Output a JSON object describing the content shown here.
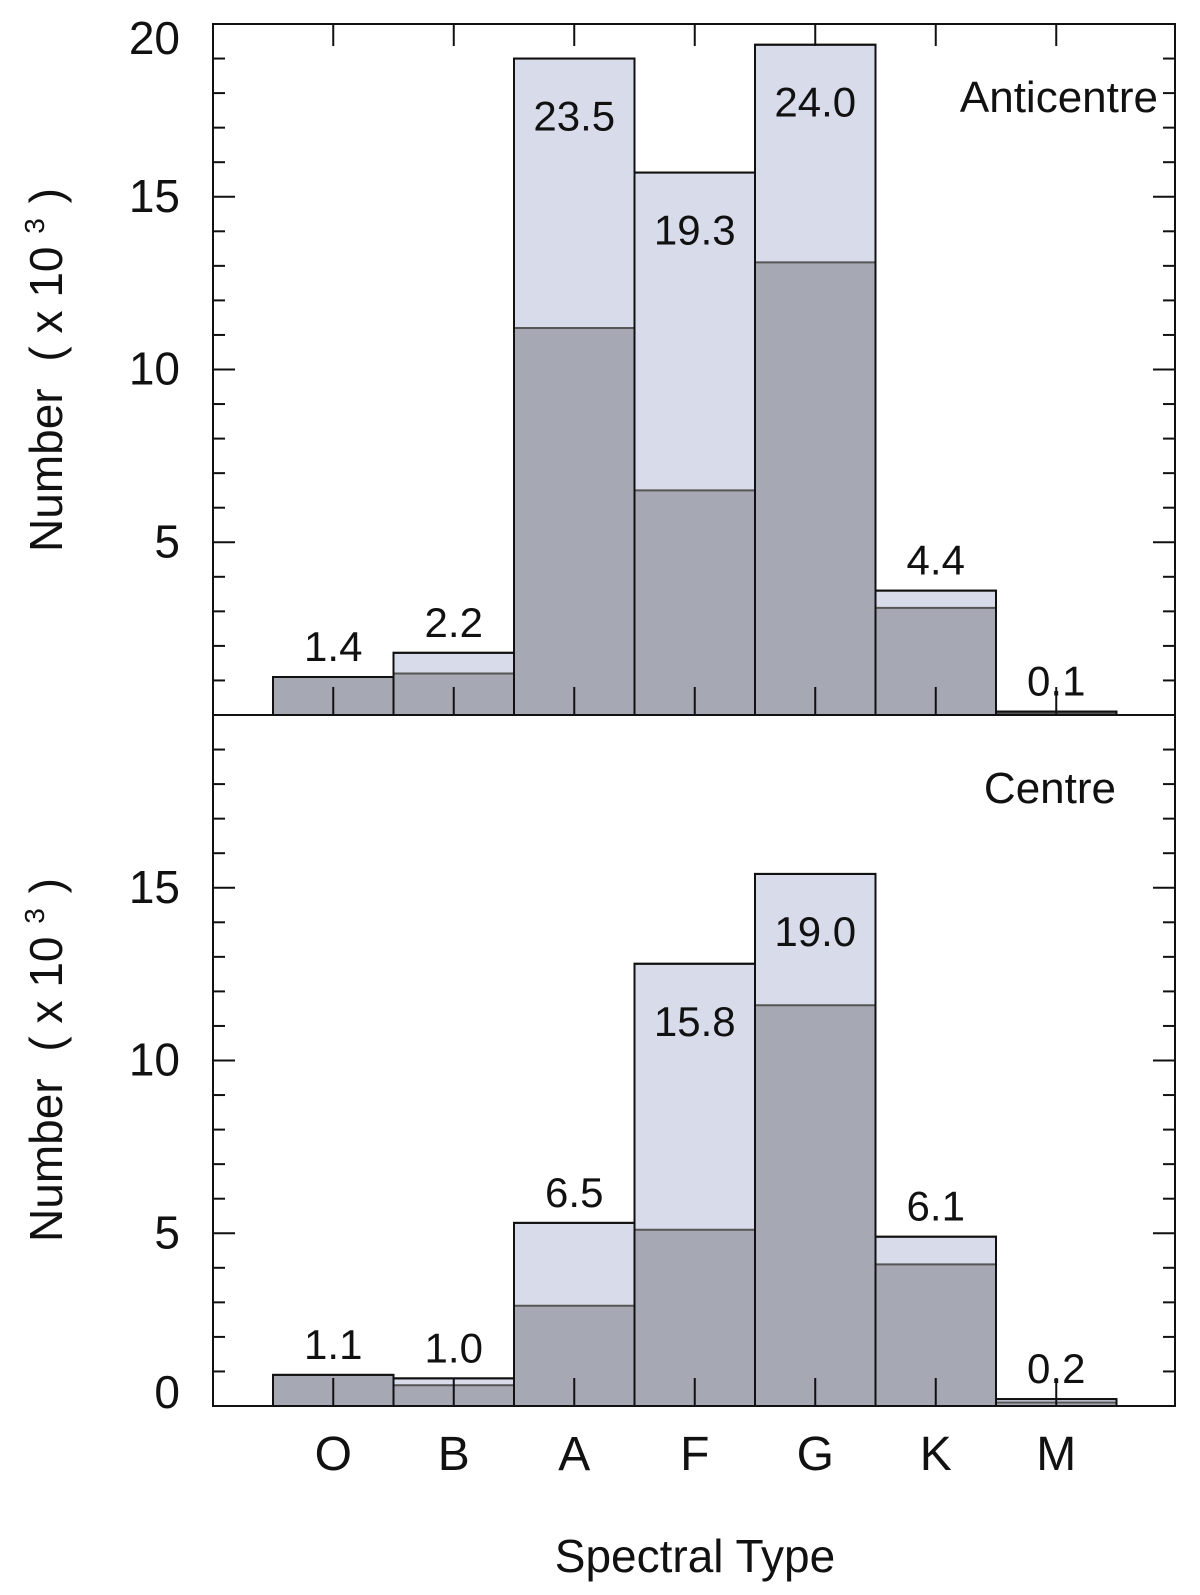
{
  "chart_data": [
    {
      "type": "bar",
      "panel": "top",
      "title": "Anticentre",
      "ylabel": "Number",
      "ylabel_unit": "( x 10",
      "ylabel_exp": "3",
      "ylabel_close": ")",
      "ylim": [
        0,
        20
      ],
      "yticks": [
        5,
        10,
        15,
        20
      ],
      "categories": [
        "O",
        "B",
        "A",
        "F",
        "G",
        "K",
        "M"
      ],
      "series": [
        {
          "role": "total",
          "values": [
            1.1,
            1.8,
            19.0,
            15.7,
            19.4,
            3.6,
            0.1
          ]
        },
        {
          "role": "subset",
          "values": [
            1.1,
            1.2,
            11.2,
            6.5,
            13.1,
            3.1,
            0.05
          ]
        }
      ],
      "bar_labels": [
        "1.4",
        "2.2",
        "23.5",
        "19.3",
        "24.0",
        "4.4",
        "0.1"
      ],
      "label_inside": [
        false,
        false,
        true,
        true,
        true,
        false,
        false
      ]
    },
    {
      "type": "bar",
      "panel": "bottom",
      "title": "Centre",
      "ylabel": "Number",
      "ylabel_unit": "( x 10",
      "ylabel_exp": "3",
      "ylabel_close": ")",
      "xlabel": "Spectral Type",
      "ylim": [
        0,
        20
      ],
      "yticks": [
        0,
        5,
        10,
        15
      ],
      "categories": [
        "O",
        "B",
        "A",
        "F",
        "G",
        "K",
        "M"
      ],
      "series": [
        {
          "role": "total",
          "values": [
            0.9,
            0.8,
            5.3,
            12.8,
            15.4,
            4.9,
            0.2
          ]
        },
        {
          "role": "subset",
          "values": [
            0.9,
            0.6,
            2.9,
            5.1,
            11.6,
            4.1,
            0.1
          ]
        }
      ],
      "bar_labels": [
        "1.1",
        "1.0",
        "6.5",
        "15.8",
        "19.0",
        "6.1",
        "0.2"
      ],
      "label_inside": [
        false,
        false,
        false,
        true,
        true,
        false,
        false
      ]
    }
  ],
  "colors": {
    "total_fill": "#d8dcea",
    "subset_fill": "#a6a9b3",
    "outline": "#111111",
    "subset_line": "#555555"
  }
}
